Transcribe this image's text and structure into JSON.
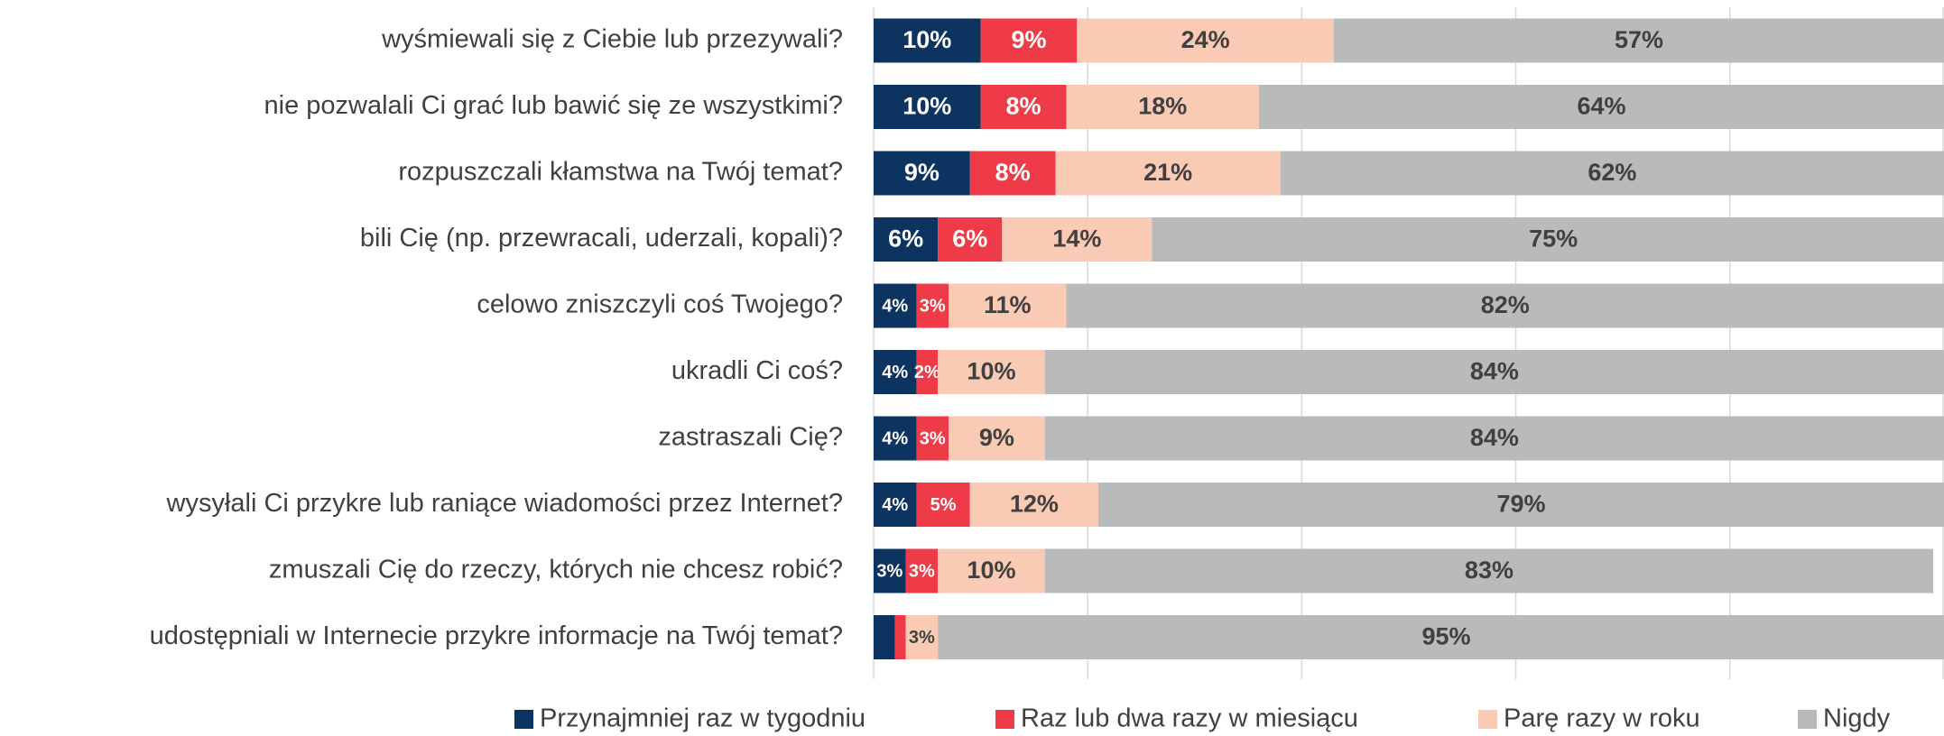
{
  "chart_data": {
    "type": "bar",
    "orientation": "horizontal",
    "stacked": true,
    "categories": [
      "wyśmiewali się z Ciebie lub przezywali?",
      "nie pozwalali Ci grać lub bawić się ze wszystkimi?",
      "rozpuszczali kłamstwa na Twój temat?",
      "bili Cię (np. przewracali, uderzali, kopali)?",
      "celowo zniszczyli coś Twojego?",
      "ukradli Ci coś?",
      "zastraszali Cię?",
      "wysyłali Ci przykre lub raniące wiadomości przez Internet?",
      "zmuszali Cię do rzeczy, których nie chcesz robić?",
      "udostępniali w Internecie przykre informacje na Twój temat?"
    ],
    "series": [
      {
        "name": "Przynajmniej raz w tygodniu",
        "color": "#0d3461",
        "values": [
          10,
          10,
          9,
          6,
          4,
          4,
          4,
          4,
          3,
          2
        ],
        "value_labels": [
          "10%",
          "10%",
          "9%",
          "6%",
          "4%",
          "4%",
          "4%",
          "4%",
          "3%",
          null
        ]
      },
      {
        "name": "Raz lub dwa razy w miesiącu",
        "color": "#ef3a47",
        "values": [
          9,
          8,
          8,
          6,
          3,
          2,
          3,
          5,
          3,
          1
        ],
        "value_labels": [
          "9%",
          "8%",
          "8%",
          "6%",
          "3%",
          "2%",
          "3%",
          "5%",
          "3%",
          null
        ]
      },
      {
        "name": "Parę razy w roku",
        "color": "#f9cab4",
        "values": [
          24,
          18,
          21,
          14,
          11,
          10,
          9,
          12,
          10,
          3
        ],
        "value_labels": [
          "24%",
          "18%",
          "21%",
          "14%",
          "11%",
          "10%",
          "9%",
          "12%",
          "10%",
          "3%"
        ]
      },
      {
        "name": "Nigdy",
        "color": "#b8babb",
        "values": [
          57,
          64,
          62,
          75,
          82,
          84,
          84,
          79,
          83,
          95
        ],
        "value_labels": [
          "57%",
          "64%",
          "62%",
          "75%",
          "82%",
          "84%",
          "84%",
          "79%",
          "83%",
          "95%"
        ]
      }
    ],
    "xlim": [
      0,
      100
    ],
    "xticks": [
      0,
      20,
      40,
      60,
      80,
      100
    ],
    "grid": true,
    "legend": "bottom"
  }
}
